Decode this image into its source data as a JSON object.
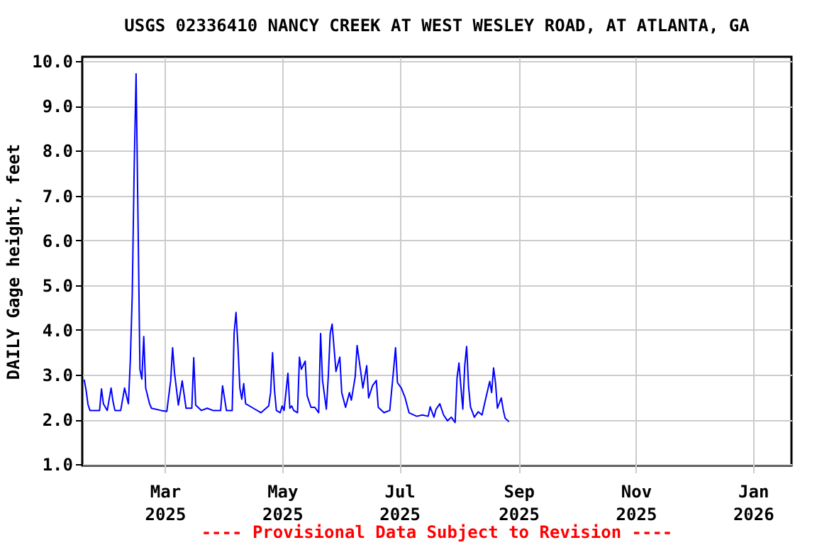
{
  "chart_data": {
    "type": "line",
    "title": "USGS 02336410 NANCY CREEK AT WEST WESLEY ROAD, AT ATLANTA, GA",
    "ylabel": "DAILY Gage height, feet",
    "annotations": [
      "---- Provisional Data Subject to Revision ----"
    ],
    "xlim": [
      "2025-01-17",
      "2026-01-21"
    ],
    "xticks": [
      {
        "value": "2025-03-01",
        "label": "Mar 2025"
      },
      {
        "value": "2025-05-01",
        "label": "May 2025"
      },
      {
        "value": "2025-07-01",
        "label": "Jul 2025"
      },
      {
        "value": "2025-09-01",
        "label": "Sep 2025"
      },
      {
        "value": "2025-11-01",
        "label": "Nov 2025"
      },
      {
        "value": "2026-01-01",
        "label": "Jan 2026"
      }
    ],
    "ylim": [
      0.97,
      10.1
    ],
    "yticks": [
      {
        "value": 1,
        "label": "1.0"
      },
      {
        "value": 2,
        "label": "2.0"
      },
      {
        "value": 3,
        "label": "3.0"
      },
      {
        "value": 4,
        "label": "4.0"
      },
      {
        "value": 5,
        "label": "5.0"
      },
      {
        "value": 6,
        "label": "6.0"
      },
      {
        "value": 7,
        "label": "7.0"
      },
      {
        "value": 8,
        "label": "8.0"
      },
      {
        "value": 9,
        "label": "9.0"
      },
      {
        "value": 10,
        "label": "10.0"
      }
    ],
    "grid": true,
    "marker": "none",
    "line_style": "solid",
    "x": [
      "2025-01-18",
      "2025-01-19",
      "2025-01-20",
      "2025-01-21",
      "2025-01-26",
      "2025-01-27",
      "2025-01-28",
      "2025-01-30",
      "2025-02-01",
      "2025-02-02",
      "2025-02-03",
      "2025-02-06",
      "2025-02-08",
      "2025-02-10",
      "2025-02-11",
      "2025-02-12",
      "2025-02-13",
      "2025-02-14",
      "2025-02-15",
      "2025-02-16",
      "2025-02-17",
      "2025-02-18",
      "2025-02-19",
      "2025-02-21",
      "2025-02-22",
      "2025-02-27",
      "2025-03-02",
      "2025-03-04",
      "2025-03-05",
      "2025-03-06",
      "2025-03-08",
      "2025-03-10",
      "2025-03-12",
      "2025-03-15",
      "2025-03-16",
      "2025-03-17",
      "2025-03-20",
      "2025-03-23",
      "2025-03-26",
      "2025-03-30",
      "2025-03-31",
      "2025-04-02",
      "2025-04-05",
      "2025-04-06",
      "2025-04-07",
      "2025-04-08",
      "2025-04-09",
      "2025-04-10",
      "2025-04-11",
      "2025-04-12",
      "2025-04-16",
      "2025-04-20",
      "2025-04-24",
      "2025-04-25",
      "2025-04-26",
      "2025-04-27",
      "2025-04-28",
      "2025-04-30",
      "2025-05-01",
      "2025-05-02",
      "2025-05-04",
      "2025-05-05",
      "2025-05-06",
      "2025-05-07",
      "2025-05-09",
      "2025-05-10",
      "2025-05-11",
      "2025-05-13",
      "2025-05-14",
      "2025-05-16",
      "2025-05-18",
      "2025-05-20",
      "2025-05-21",
      "2025-05-22",
      "2025-05-24",
      "2025-05-25",
      "2025-05-26",
      "2025-05-27",
      "2025-05-28",
      "2025-05-29",
      "2025-05-31",
      "2025-06-01",
      "2025-06-03",
      "2025-06-05",
      "2025-06-06",
      "2025-06-08",
      "2025-06-09",
      "2025-06-11",
      "2025-06-12",
      "2025-06-14",
      "2025-06-15",
      "2025-06-17",
      "2025-06-19",
      "2025-06-20",
      "2025-06-23",
      "2025-06-26",
      "2025-06-28",
      "2025-06-29",
      "2025-06-30",
      "2025-07-02",
      "2025-07-04",
      "2025-07-06",
      "2025-07-10",
      "2025-07-13",
      "2025-07-16",
      "2025-07-17",
      "2025-07-19",
      "2025-07-20",
      "2025-07-22",
      "2025-07-24",
      "2025-07-26",
      "2025-07-28",
      "2025-07-30",
      "2025-07-31",
      "2025-08-01",
      "2025-08-02",
      "2025-08-03",
      "2025-08-04",
      "2025-08-05",
      "2025-08-06",
      "2025-08-07",
      "2025-08-09",
      "2025-08-11",
      "2025-08-13",
      "2025-08-15",
      "2025-08-17",
      "2025-08-18",
      "2025-08-19",
      "2025-08-20",
      "2025-08-21",
      "2025-08-23",
      "2025-08-24",
      "2025-08-25",
      "2025-08-27"
    ],
    "series": [
      {
        "color": "#0000ff",
        "values": [
          2.89,
          2.65,
          2.33,
          2.2,
          2.2,
          2.68,
          2.35,
          2.2,
          2.7,
          2.4,
          2.2,
          2.2,
          2.7,
          2.35,
          3.31,
          4.77,
          7.58,
          9.72,
          6.48,
          3.12,
          2.9,
          3.85,
          2.7,
          2.35,
          2.25,
          2.2,
          2.18,
          2.87,
          3.6,
          3.04,
          2.32,
          2.86,
          2.25,
          2.25,
          3.38,
          2.32,
          2.2,
          2.25,
          2.2,
          2.2,
          2.75,
          2.2,
          2.2,
          3.92,
          4.39,
          3.64,
          2.7,
          2.45,
          2.8,
          2.35,
          2.25,
          2.15,
          2.3,
          2.6,
          3.49,
          2.66,
          2.2,
          2.15,
          2.3,
          2.2,
          3.03,
          2.25,
          2.3,
          2.2,
          2.15,
          3.39,
          3.12,
          3.3,
          2.53,
          2.27,
          2.27,
          2.15,
          3.92,
          2.87,
          2.23,
          2.95,
          3.92,
          4.13,
          3.6,
          3.07,
          3.39,
          2.6,
          2.27,
          2.6,
          2.43,
          2.95,
          3.65,
          3.03,
          2.7,
          3.2,
          2.48,
          2.75,
          2.87,
          2.27,
          2.15,
          2.2,
          3.12,
          3.6,
          2.82,
          2.7,
          2.48,
          2.15,
          2.07,
          2.1,
          2.07,
          2.28,
          2.05,
          2.22,
          2.35,
          2.1,
          1.97,
          2.05,
          1.93,
          2.93,
          3.26,
          2.73,
          2.23,
          3.2,
          3.63,
          2.73,
          2.28,
          2.05,
          2.17,
          2.1,
          2.48,
          2.85,
          2.6,
          3.15,
          2.82,
          2.25,
          2.48,
          2.22,
          2.03,
          1.95
        ]
      }
    ]
  }
}
